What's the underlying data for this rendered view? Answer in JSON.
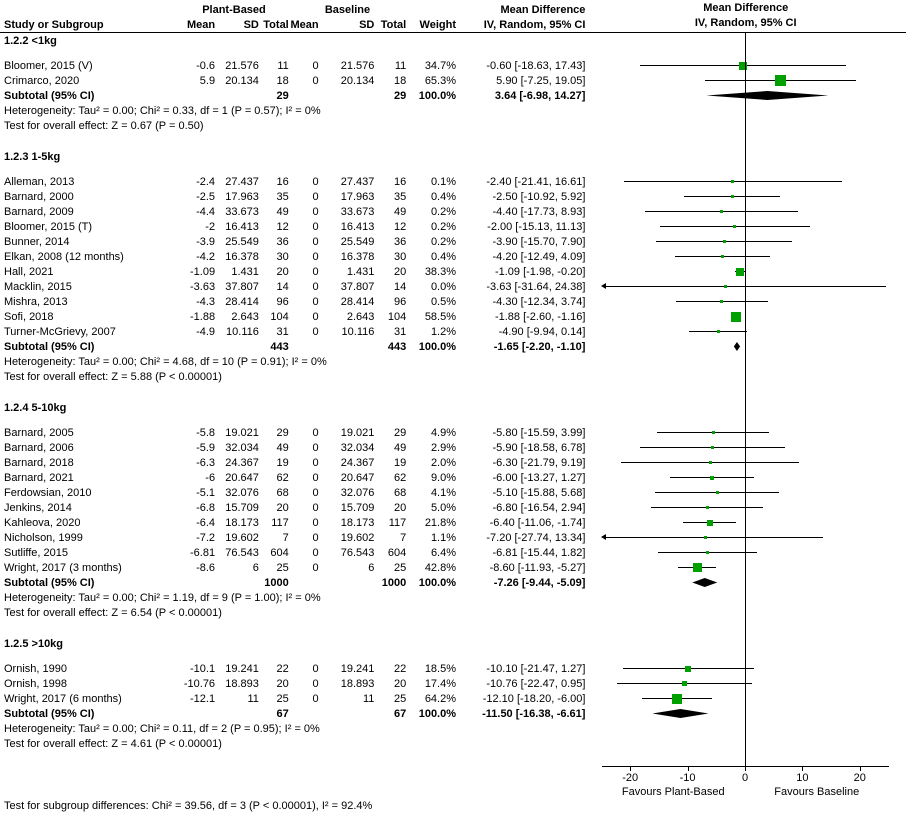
{
  "chart_data": {
    "type": "forest",
    "title": "Mean Difference (Plant-Based vs Baseline)",
    "columns": {
      "study": "Study or Subgroup",
      "group1": "Plant-Based",
      "group2": "Baseline",
      "mean": "Mean",
      "sd": "SD",
      "total": "Total",
      "weight": "Weight",
      "md": "Mean Difference",
      "ci": "IV, Random, 95% CI"
    },
    "axis": {
      "min": -25,
      "max": 25,
      "ticks": [
        -20,
        -10,
        0,
        10,
        20
      ],
      "label_left": "Favours Plant-Based",
      "label_right": "Favours Baseline"
    },
    "colors": {
      "marker_green": "#00a000",
      "diamond_black": "#000000",
      "line_black": "#000000"
    },
    "subgroups": [
      {
        "title": "1.2.2 <1kg",
        "studies": [
          {
            "study": "Bloomer, 2015 (V)",
            "mean_pb": "-0.6",
            "sd_pb": "21.576",
            "total_pb": "11",
            "mean_bl": "0",
            "sd_bl": "21.576",
            "total_bl": "11",
            "weight": "34.7%",
            "md_ci": "-0.60 [-18.63, 17.43]",
            "est": -0.6,
            "lo": -18.63,
            "hi": 17.43,
            "weight_pct": 34.7
          },
          {
            "study": "Crimarco, 2020",
            "mean_pb": "5.9",
            "sd_pb": "20.134",
            "total_pb": "18",
            "mean_bl": "0",
            "sd_bl": "20.134",
            "total_bl": "18",
            "weight": "65.3%",
            "md_ci": "5.90 [-7.25, 19.05]",
            "est": 5.9,
            "lo": -7.25,
            "hi": 19.05,
            "weight_pct": 65.3
          }
        ],
        "subtotal": {
          "label": "Subtotal (95% CI)",
          "total_pb": "29",
          "total_bl": "29",
          "weight": "100.0%",
          "md_ci": "3.64 [-6.98, 14.27]",
          "est": 3.64,
          "lo": -6.98,
          "hi": 14.27
        },
        "heterogeneity": "Heterogeneity: Tau² = 0.00; Chi² = 0.33, df = 1 (P = 0.57); I² = 0%",
        "overall_effect": "Test for overall effect: Z = 0.67 (P = 0.50)"
      },
      {
        "title": "1.2.3 1-5kg",
        "studies": [
          {
            "study": "Alleman, 2013",
            "mean_pb": "-2.4",
            "sd_pb": "27.437",
            "total_pb": "16",
            "mean_bl": "0",
            "sd_bl": "27.437",
            "total_bl": "16",
            "weight": "0.1%",
            "md_ci": "-2.40 [-21.41, 16.61]",
            "est": -2.4,
            "lo": -21.41,
            "hi": 16.61,
            "weight_pct": 0.1
          },
          {
            "study": "Barnard, 2000",
            "mean_pb": "-2.5",
            "sd_pb": "17.963",
            "total_pb": "35",
            "mean_bl": "0",
            "sd_bl": "17.963",
            "total_bl": "35",
            "weight": "0.4%",
            "md_ci": "-2.50 [-10.92, 5.92]",
            "est": -2.5,
            "lo": -10.92,
            "hi": 5.92,
            "weight_pct": 0.4
          },
          {
            "study": "Barnard, 2009",
            "mean_pb": "-4.4",
            "sd_pb": "33.673",
            "total_pb": "49",
            "mean_bl": "0",
            "sd_bl": "33.673",
            "total_bl": "49",
            "weight": "0.2%",
            "md_ci": "-4.40 [-17.73, 8.93]",
            "est": -4.4,
            "lo": -17.73,
            "hi": 8.93,
            "weight_pct": 0.2
          },
          {
            "study": "Bloomer, 2015 (T)",
            "mean_pb": "-2",
            "sd_pb": "16.413",
            "total_pb": "12",
            "mean_bl": "0",
            "sd_bl": "16.413",
            "total_bl": "12",
            "weight": "0.2%",
            "md_ci": "-2.00 [-15.13, 11.13]",
            "est": -2,
            "lo": -15.13,
            "hi": 11.13,
            "weight_pct": 0.2
          },
          {
            "study": "Bunner, 2014",
            "mean_pb": "-3.9",
            "sd_pb": "25.549",
            "total_pb": "36",
            "mean_bl": "0",
            "sd_bl": "25.549",
            "total_bl": "36",
            "weight": "0.2%",
            "md_ci": "-3.90 [-15.70, 7.90]",
            "est": -3.9,
            "lo": -15.7,
            "hi": 7.9,
            "weight_pct": 0.2
          },
          {
            "study": "Elkan, 2008 (12 months)",
            "mean_pb": "-4.2",
            "sd_pb": "16.378",
            "total_pb": "30",
            "mean_bl": "0",
            "sd_bl": "16.378",
            "total_bl": "30",
            "weight": "0.4%",
            "md_ci": "-4.20 [-12.49, 4.09]",
            "est": -4.2,
            "lo": -12.49,
            "hi": 4.09,
            "weight_pct": 0.4
          },
          {
            "study": "Hall, 2021",
            "mean_pb": "-1.09",
            "sd_pb": "1.431",
            "total_pb": "20",
            "mean_bl": "0",
            "sd_bl": "1.431",
            "total_bl": "20",
            "weight": "38.3%",
            "md_ci": "-1.09 [-1.98, -0.20]",
            "est": -1.09,
            "lo": -1.98,
            "hi": -0.2,
            "weight_pct": 38.3
          },
          {
            "study": "Macklin, 2015",
            "mean_pb": "-3.63",
            "sd_pb": "37.807",
            "total_pb": "14",
            "mean_bl": "0",
            "sd_bl": "37.807",
            "total_bl": "14",
            "weight": "0.0%",
            "md_ci": "-3.63 [-31.64, 24.38]",
            "est": -3.63,
            "lo": -31.64,
            "hi": 24.38,
            "weight_pct": 0.05
          },
          {
            "study": "Mishra, 2013",
            "mean_pb": "-4.3",
            "sd_pb": "28.414",
            "total_pb": "96",
            "mean_bl": "0",
            "sd_bl": "28.414",
            "total_bl": "96",
            "weight": "0.5%",
            "md_ci": "-4.30 [-12.34, 3.74]",
            "est": -4.3,
            "lo": -12.34,
            "hi": 3.74,
            "weight_pct": 0.5
          },
          {
            "study": "Sofi, 2018",
            "mean_pb": "-1.88",
            "sd_pb": "2.643",
            "total_pb": "104",
            "mean_bl": "0",
            "sd_bl": "2.643",
            "total_bl": "104",
            "weight": "58.5%",
            "md_ci": "-1.88 [-2.60, -1.16]",
            "est": -1.88,
            "lo": -2.6,
            "hi": -1.16,
            "weight_pct": 58.5
          },
          {
            "study": "Turner-McGrievy, 2007",
            "mean_pb": "-4.9",
            "sd_pb": "10.116",
            "total_pb": "31",
            "mean_bl": "0",
            "sd_bl": "10.116",
            "total_bl": "31",
            "weight": "1.2%",
            "md_ci": "-4.90 [-9.94, 0.14]",
            "est": -4.9,
            "lo": -9.94,
            "hi": 0.14,
            "weight_pct": 1.2
          }
        ],
        "subtotal": {
          "label": "Subtotal (95% CI)",
          "total_pb": "443",
          "total_bl": "443",
          "weight": "100.0%",
          "md_ci": "-1.65 [-2.20, -1.10]",
          "est": -1.65,
          "lo": -2.2,
          "hi": -1.1
        },
        "heterogeneity": "Heterogeneity: Tau² = 0.00; Chi² = 4.68, df = 10 (P = 0.91); I² = 0%",
        "overall_effect": "Test for overall effect: Z = 5.88 (P < 0.00001)"
      },
      {
        "title": "1.2.4 5-10kg",
        "studies": [
          {
            "study": "Barnard, 2005",
            "mean_pb": "-5.8",
            "sd_pb": "19.021",
            "total_pb": "29",
            "mean_bl": "0",
            "sd_bl": "19.021",
            "total_bl": "29",
            "weight": "4.9%",
            "md_ci": "-5.80 [-15.59, 3.99]",
            "est": -5.8,
            "lo": -15.59,
            "hi": 3.99,
            "weight_pct": 4.9
          },
          {
            "study": "Barnard, 2006",
            "mean_pb": "-5.9",
            "sd_pb": "32.034",
            "total_pb": "49",
            "mean_bl": "0",
            "sd_bl": "32.034",
            "total_bl": "49",
            "weight": "2.9%",
            "md_ci": "-5.90 [-18.58, 6.78]",
            "est": -5.9,
            "lo": -18.58,
            "hi": 6.78,
            "weight_pct": 2.9
          },
          {
            "study": "Barnard, 2018",
            "mean_pb": "-6.3",
            "sd_pb": "24.367",
            "total_pb": "19",
            "mean_bl": "0",
            "sd_bl": "24.367",
            "total_bl": "19",
            "weight": "2.0%",
            "md_ci": "-6.30 [-21.79, 9.19]",
            "est": -6.3,
            "lo": -21.79,
            "hi": 9.19,
            "weight_pct": 2.0
          },
          {
            "study": "Barnard, 2021",
            "mean_pb": "-6",
            "sd_pb": "20.647",
            "total_pb": "62",
            "mean_bl": "0",
            "sd_bl": "20.647",
            "total_bl": "62",
            "weight": "9.0%",
            "md_ci": "-6.00 [-13.27, 1.27]",
            "est": -6,
            "lo": -13.27,
            "hi": 1.27,
            "weight_pct": 9.0
          },
          {
            "study": "Ferdowsian, 2010",
            "mean_pb": "-5.1",
            "sd_pb": "32.076",
            "total_pb": "68",
            "mean_bl": "0",
            "sd_bl": "32.076",
            "total_bl": "68",
            "weight": "4.1%",
            "md_ci": "-5.10 [-15.88, 5.68]",
            "est": -5.1,
            "lo": -15.88,
            "hi": 5.68,
            "weight_pct": 4.1
          },
          {
            "study": "Jenkins, 2014",
            "mean_pb": "-6.8",
            "sd_pb": "15.709",
            "total_pb": "20",
            "mean_bl": "0",
            "sd_bl": "15.709",
            "total_bl": "20",
            "weight": "5.0%",
            "md_ci": "-6.80 [-16.54, 2.94]",
            "est": -6.8,
            "lo": -16.54,
            "hi": 2.94,
            "weight_pct": 5.0
          },
          {
            "study": "Kahleova, 2020",
            "mean_pb": "-6.4",
            "sd_pb": "18.173",
            "total_pb": "117",
            "mean_bl": "0",
            "sd_bl": "18.173",
            "total_bl": "117",
            "weight": "21.8%",
            "md_ci": "-6.40 [-11.06, -1.74]",
            "est": -6.4,
            "lo": -11.06,
            "hi": -1.74,
            "weight_pct": 21.8
          },
          {
            "study": "Nicholson, 1999",
            "mean_pb": "-7.2",
            "sd_pb": "19.602",
            "total_pb": "7",
            "mean_bl": "0",
            "sd_bl": "19.602",
            "total_bl": "7",
            "weight": "1.1%",
            "md_ci": "-7.20 [-27.74, 13.34]",
            "est": -7.2,
            "lo": -27.74,
            "hi": 13.34,
            "weight_pct": 1.1
          },
          {
            "study": "Sutliffe, 2015",
            "mean_pb": "-6.81",
            "sd_pb": "76.543",
            "total_pb": "604",
            "mean_bl": "0",
            "sd_bl": "76.543",
            "total_bl": "604",
            "weight": "6.4%",
            "md_ci": "-6.81 [-15.44, 1.82]",
            "est": -6.81,
            "lo": -15.44,
            "hi": 1.82,
            "weight_pct": 6.4
          },
          {
            "study": "Wright, 2017 (3 months)",
            "mean_pb": "-8.6",
            "sd_pb": "6",
            "total_pb": "25",
            "mean_bl": "0",
            "sd_bl": "6",
            "total_bl": "25",
            "weight": "42.8%",
            "md_ci": "-8.60 [-11.93, -5.27]",
            "est": -8.6,
            "lo": -11.93,
            "hi": -5.27,
            "weight_pct": 42.8
          }
        ],
        "subtotal": {
          "label": "Subtotal (95% CI)",
          "total_pb": "1000",
          "total_bl": "1000",
          "weight": "100.0%",
          "md_ci": "-7.26 [-9.44, -5.09]",
          "est": -7.26,
          "lo": -9.44,
          "hi": -5.09
        },
        "heterogeneity": "Heterogeneity: Tau² = 0.00; Chi² = 1.19, df = 9 (P = 1.00); I² = 0%",
        "overall_effect": "Test for overall effect: Z = 6.54 (P < 0.00001)"
      },
      {
        "title": "1.2.5 >10kg",
        "studies": [
          {
            "study": "Ornish, 1990",
            "mean_pb": "-10.1",
            "sd_pb": "19.241",
            "total_pb": "22",
            "mean_bl": "0",
            "sd_bl": "19.241",
            "total_bl": "22",
            "weight": "18.5%",
            "md_ci": "-10.10 [-21.47, 1.27]",
            "est": -10.1,
            "lo": -21.47,
            "hi": 1.27,
            "weight_pct": 18.5
          },
          {
            "study": "Ornish, 1998",
            "mean_pb": "-10.76",
            "sd_pb": "18.893",
            "total_pb": "20",
            "mean_bl": "0",
            "sd_bl": "18.893",
            "total_bl": "20",
            "weight": "17.4%",
            "md_ci": "-10.76 [-22.47, 0.95]",
            "est": -10.76,
            "lo": -22.47,
            "hi": 0.95,
            "weight_pct": 17.4
          },
          {
            "study": "Wright, 2017 (6 months)",
            "mean_pb": "-12.1",
            "sd_pb": "11",
            "total_pb": "25",
            "mean_bl": "0",
            "sd_bl": "11",
            "total_bl": "25",
            "weight": "64.2%",
            "md_ci": "-12.10 [-18.20, -6.00]",
            "est": -12.1,
            "lo": -18.2,
            "hi": -6,
            "weight_pct": 64.2
          }
        ],
        "subtotal": {
          "label": "Subtotal (95% CI)",
          "total_pb": "67",
          "total_bl": "67",
          "weight": "100.0%",
          "md_ci": "-11.50 [-16.38, -6.61]",
          "est": -11.5,
          "lo": -16.38,
          "hi": -6.61
        },
        "heterogeneity": "Heterogeneity: Tau² = 0.00; Chi² = 0.11, df = 2 (P = 0.95); I² = 0%",
        "overall_effect": "Test for overall effect: Z = 4.61 (P < 0.00001)"
      }
    ],
    "footnote": "Test for subgroup differences: Chi² = 39.56, df = 3 (P < 0.00001), I² = 92.4%"
  }
}
